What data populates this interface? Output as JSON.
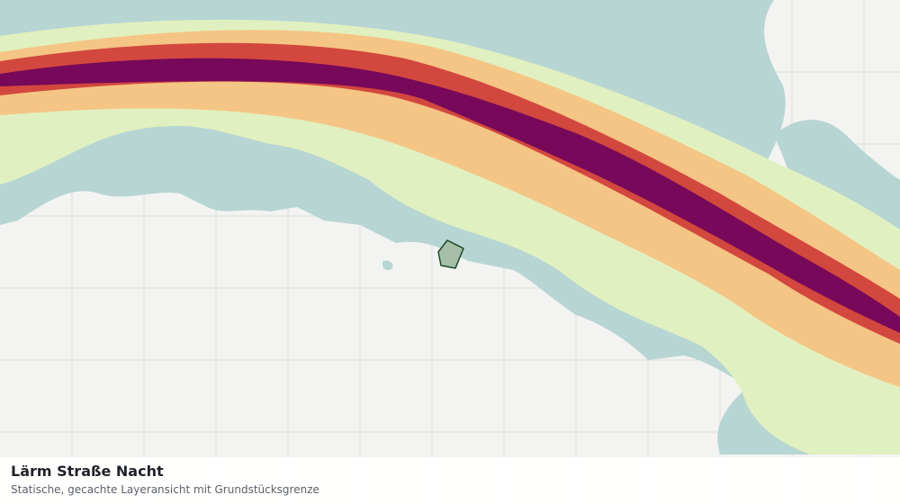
{
  "layer": {
    "title": "Lärm Straße Nacht",
    "subtitle": "Statische, gecachte Layeransicht mit Grundstücksgrenze"
  },
  "colors": {
    "background": "#f3f4f2",
    "grid": "#dcdedc",
    "wooded": "#b7d5d3",
    "noise_band_1": "#e1f0c0",
    "noise_band_2": "#f4c585",
    "noise_band_3": "#d2473e",
    "noise_band_4": "#77085a",
    "parcel_fill": "#a7bfa9",
    "parcel_stroke": "#1f4a2a"
  }
}
